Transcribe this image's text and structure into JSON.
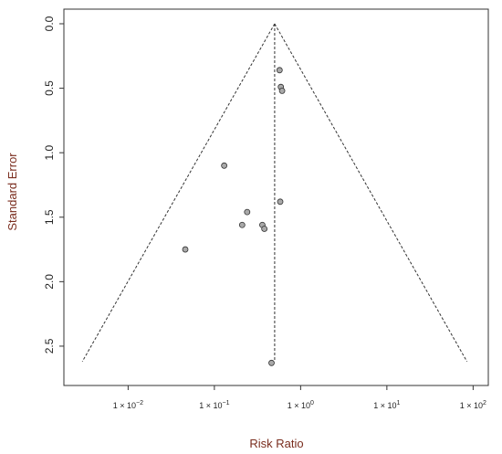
{
  "chart_data": {
    "type": "scatter",
    "title": "",
    "xlabel": "Risk Ratio",
    "ylabel": "Standard Error",
    "x_scale": "log10",
    "y_reversed": true,
    "xlim": [
      0.0018,
      150
    ],
    "ylim": [
      0,
      2.72
    ],
    "x_ticks": [
      {
        "value": 0.01,
        "base": "1 × 10",
        "exp": "−2"
      },
      {
        "value": 0.1,
        "base": "1 × 10",
        "exp": "−1"
      },
      {
        "value": 1,
        "base": "1 × 10",
        "exp": "0"
      },
      {
        "value": 10,
        "base": "1 × 10",
        "exp": "1"
      },
      {
        "value": 100,
        "base": "1 × 10",
        "exp": "2"
      }
    ],
    "y_ticks": [
      {
        "value": 0,
        "label": "0.0"
      },
      {
        "value": 0.5,
        "label": "0.5"
      },
      {
        "value": 1,
        "label": "1.0"
      },
      {
        "value": 1.5,
        "label": "1.5"
      },
      {
        "value": 2,
        "label": "2.0"
      },
      {
        "value": 2.5,
        "label": "2.5"
      }
    ],
    "pooled_estimate": 0.5,
    "funnel_se_max": 2.62,
    "points": [
      {
        "x": 0.57,
        "y": 0.36
      },
      {
        "x": 0.59,
        "y": 0.49
      },
      {
        "x": 0.61,
        "y": 0.52
      },
      {
        "x": 0.13,
        "y": 1.1
      },
      {
        "x": 0.58,
        "y": 1.38
      },
      {
        "x": 0.24,
        "y": 1.46
      },
      {
        "x": 0.21,
        "y": 1.56
      },
      {
        "x": 0.36,
        "y": 1.56
      },
      {
        "x": 0.38,
        "y": 1.59
      },
      {
        "x": 0.046,
        "y": 1.75
      },
      {
        "x": 0.46,
        "y": 2.63
      }
    ],
    "grid": false,
    "legend": "none",
    "colors": {
      "point_fill": "#a9a9a9",
      "point_stroke": "#333333",
      "line": "#333333",
      "axis_label": "#7a2d1e"
    }
  }
}
